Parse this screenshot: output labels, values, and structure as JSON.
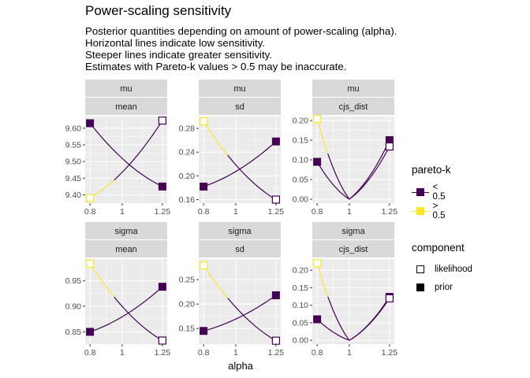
{
  "title": "Power-scaling sensitivity",
  "subtitle_lines": [
    "Posterior quantities depending on amount of power-scaling (alpha).",
    "Horizontal lines indicate low sensitivity.",
    "Steeper lines indicate greater sensitivity.",
    "Estimates with Pareto-k values > 0.5 may be inaccurate."
  ],
  "colors": {
    "low_k": "#440154",
    "high_k": "#FDE725",
    "panel_bg": "#EBEBEB",
    "strip_bg": "#D9D9D9",
    "grid": "#FFFFFF"
  },
  "legend": {
    "pareto_title": "pareto-k",
    "pareto_items": [
      "< 0.5",
      "> 0.5"
    ],
    "component_title": "component",
    "component_items": [
      "likelihood",
      "prior"
    ]
  },
  "chart_data": {
    "type": "line",
    "xlabel": "alpha",
    "x_ticks": [
      "0.8",
      "1",
      "1.25"
    ],
    "x_values": [
      0.8,
      1,
      1.25
    ],
    "panels": [
      {
        "strip_top": "mu",
        "strip_bottom": "mean",
        "ylim": [
          9.375,
          9.635
        ],
        "y_ticks": [
          9.4,
          9.45,
          9.5,
          9.55,
          9.6
        ],
        "y_tick_labels": [
          "9.40",
          "9.45",
          "9.50",
          "9.55",
          "9.60"
        ],
        "series": [
          {
            "component": "prior",
            "x": [
              0.8,
              1.25
            ],
            "y": [
              9.615,
              9.425
            ],
            "pareto_k_high": [
              false,
              false
            ]
          },
          {
            "component": "likelihood",
            "x": [
              0.8,
              1.25
            ],
            "y": [
              9.39,
              9.623
            ],
            "pareto_k_high": [
              true,
              false
            ]
          }
        ]
      },
      {
        "strip_top": "mu",
        "strip_bottom": "sd",
        "ylim": [
          0.154,
          0.3
        ],
        "y_ticks": [
          0.16,
          0.2,
          0.24,
          0.28
        ],
        "y_tick_labels": [
          "0.16",
          "0.20",
          "0.24",
          "0.28"
        ],
        "series": [
          {
            "component": "prior",
            "x": [
              0.8,
              1.25
            ],
            "y": [
              0.182,
              0.258
            ],
            "pareto_k_high": [
              false,
              false
            ]
          },
          {
            "component": "likelihood",
            "x": [
              0.8,
              1.25
            ],
            "y": [
              0.292,
              0.16
            ],
            "pareto_k_high": [
              true,
              false
            ]
          }
        ]
      },
      {
        "strip_top": "mu",
        "strip_bottom": "cjs_dist",
        "ylim": [
          -0.01,
          0.21
        ],
        "y_ticks": [
          0.0,
          0.05,
          0.1,
          0.15,
          0.2
        ],
        "y_tick_labels": [
          "0.00",
          "0.05",
          "0.10",
          "0.15",
          "0.20"
        ],
        "series": [
          {
            "component": "prior",
            "x": [
              0.8,
              1,
              1.25
            ],
            "y": [
              0.095,
              0,
              0.15
            ],
            "pareto_k_high": [
              false,
              false,
              false
            ]
          },
          {
            "component": "likelihood",
            "x": [
              0.8,
              1,
              1.25
            ],
            "y": [
              0.204,
              0,
              0.134
            ],
            "pareto_k_high": [
              true,
              false,
              false
            ]
          }
        ]
      },
      {
        "strip_top": "sigma",
        "strip_bottom": "mean",
        "ylim": [
          0.826,
          0.992
        ],
        "y_ticks": [
          0.85,
          0.9,
          0.95
        ],
        "y_tick_labels": [
          "0.85",
          "0.90",
          "0.95"
        ],
        "series": [
          {
            "component": "prior",
            "x": [
              0.8,
              1.25
            ],
            "y": [
              0.85,
              0.938
            ],
            "pareto_k_high": [
              false,
              false
            ]
          },
          {
            "component": "likelihood",
            "x": [
              0.8,
              1.25
            ],
            "y": [
              0.983,
              0.833
            ],
            "pareto_k_high": [
              true,
              false
            ]
          }
        ]
      },
      {
        "strip_top": "sigma",
        "strip_bottom": "sd",
        "ylim": [
          0.118,
          0.292
        ],
        "y_ticks": [
          0.15,
          0.2,
          0.25
        ],
        "y_tick_labels": [
          "0.15",
          "0.20",
          "0.25"
        ],
        "series": [
          {
            "component": "prior",
            "x": [
              0.8,
              1.25
            ],
            "y": [
              0.145,
              0.218
            ],
            "pareto_k_high": [
              false,
              false
            ]
          },
          {
            "component": "likelihood",
            "x": [
              0.8,
              1.25
            ],
            "y": [
              0.279,
              0.125
            ],
            "pareto_k_high": [
              true,
              false
            ]
          }
        ]
      },
      {
        "strip_top": "sigma",
        "strip_bottom": "cjs_dist",
        "ylim": [
          -0.011,
          0.232
        ],
        "y_ticks": [
          0.0,
          0.05,
          0.1,
          0.15,
          0.2
        ],
        "y_tick_labels": [
          "0.00",
          "0.05",
          "0.10",
          "0.15",
          "0.20"
        ],
        "series": [
          {
            "component": "prior",
            "x": [
              0.8,
              1,
              1.25
            ],
            "y": [
              0.06,
              0,
              0.124
            ],
            "pareto_k_high": [
              false,
              false,
              false
            ]
          },
          {
            "component": "likelihood",
            "x": [
              0.8,
              1,
              1.25
            ],
            "y": [
              0.22,
              0,
              0.12
            ],
            "pareto_k_high": [
              true,
              false,
              false
            ]
          }
        ]
      }
    ]
  }
}
